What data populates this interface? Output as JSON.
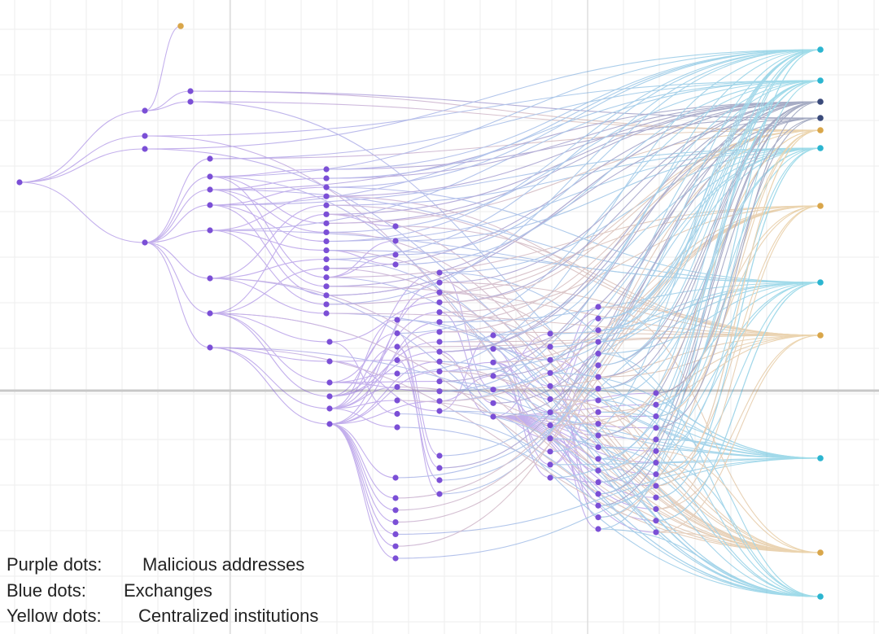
{
  "legend": [
    {
      "label": "Purple dots:",
      "text": "Malicious addresses"
    },
    {
      "label": "Blue dots:",
      "text": "Exchanges"
    },
    {
      "label": "Yellow dots:",
      "text": "Centralized institutions"
    }
  ]
}
